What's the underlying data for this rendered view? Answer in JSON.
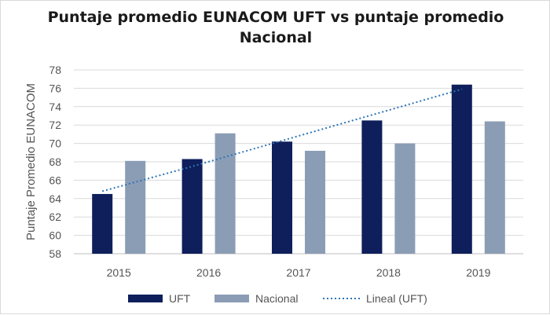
{
  "chart_data": {
    "type": "bar",
    "title_lines": [
      "Puntaje promedio EUNACOM UFT vs puntaje promedio",
      "Nacional"
    ],
    "ylabel": "Puntaje Promedio EUNACOM",
    "xlabel": "",
    "categories": [
      "2015",
      "2016",
      "2017",
      "2018",
      "2019"
    ],
    "ylim": [
      58,
      78
    ],
    "yticks": [
      58,
      60,
      62,
      64,
      66,
      68,
      70,
      72,
      74,
      76,
      78
    ],
    "grid": true,
    "legend_position": "bottom",
    "series": [
      {
        "name": "UFT",
        "values": [
          64.5,
          68.3,
          70.2,
          72.5,
          76.4
        ],
        "color": "#0e1f5b"
      },
      {
        "name": "Nacional",
        "values": [
          68.1,
          71.1,
          69.2,
          70.0,
          72.4
        ],
        "color": "#8b9db5"
      }
    ],
    "trendline": {
      "name": "Lineal (UFT)",
      "type": "linear",
      "series": "UFT",
      "color": "#2e75b6",
      "values": [
        64.8,
        67.5,
        70.3,
        73.1,
        75.9
      ]
    }
  }
}
